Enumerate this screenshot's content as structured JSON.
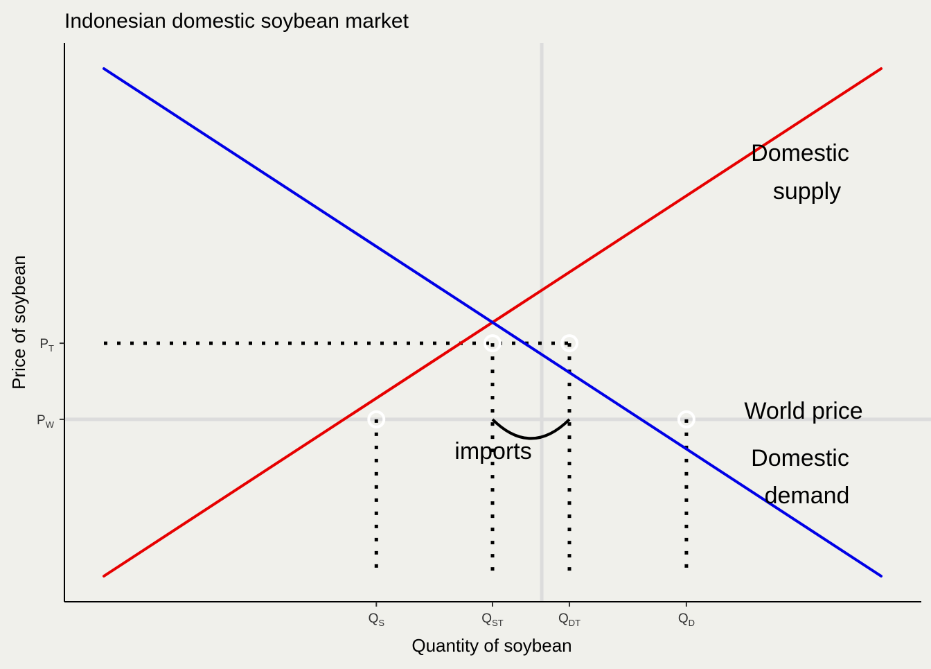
{
  "chart_data": {
    "type": "line",
    "title": "Indonesian domestic soybean market",
    "xlabel": "Quantity of soybean",
    "ylabel": "Price of soybean",
    "xlim": [
      0,
      100
    ],
    "ylim": [
      0,
      100
    ],
    "colors": {
      "background": "#f0f0eb",
      "supply": "#e60000",
      "demand": "#0000e6",
      "reference": "#dcdcdc",
      "guides": "#000000"
    },
    "series": [
      {
        "key": "supply",
        "color": "#e60000",
        "x": [
          5,
          100
        ],
        "y": [
          5,
          95
        ]
      },
      {
        "key": "demand",
        "color": "#0000e6",
        "x": [
          5,
          100
        ],
        "y": [
          95,
          5
        ]
      }
    ],
    "reference_lines": {
      "world_price_y": 32.8,
      "vertical_x": 57.5
    },
    "price_ticks": [
      {
        "main": "P",
        "sub": "T",
        "value": 46.3
      },
      {
        "main": "P",
        "sub": "W",
        "value": 32.8
      }
    ],
    "quantity_ticks": [
      {
        "main": "Q",
        "sub": "S",
        "value": 38.3
      },
      {
        "main": "Q",
        "sub": "ST",
        "value": 52.5
      },
      {
        "main": "Q",
        "sub": "DT",
        "value": 61.9
      },
      {
        "main": "Q",
        "sub": "D",
        "value": 76.2
      }
    ],
    "guides": {
      "tariff_price_x": [
        5,
        61.9
      ],
      "quantity_guides": [
        38.3,
        52.5,
        61.9,
        76.2
      ],
      "guide_tops": [
        32.8,
        46.3,
        46.3,
        32.8
      ]
    },
    "open_points": [
      {
        "x": 38.3,
        "y": 32.8
      },
      {
        "x": 52.5,
        "y": 46.3
      },
      {
        "x": 61.9,
        "y": 46.3
      },
      {
        "x": 76.2,
        "y": 32.8
      }
    ],
    "imports_brace": {
      "x0": 52.5,
      "x1": 61.9,
      "y": 32.8
    },
    "annotations": {
      "supply": [
        "Domestic",
        "supply"
      ],
      "world_price": "World price",
      "demand": [
        "Domestic",
        "demand"
      ],
      "imports": "imports"
    }
  }
}
